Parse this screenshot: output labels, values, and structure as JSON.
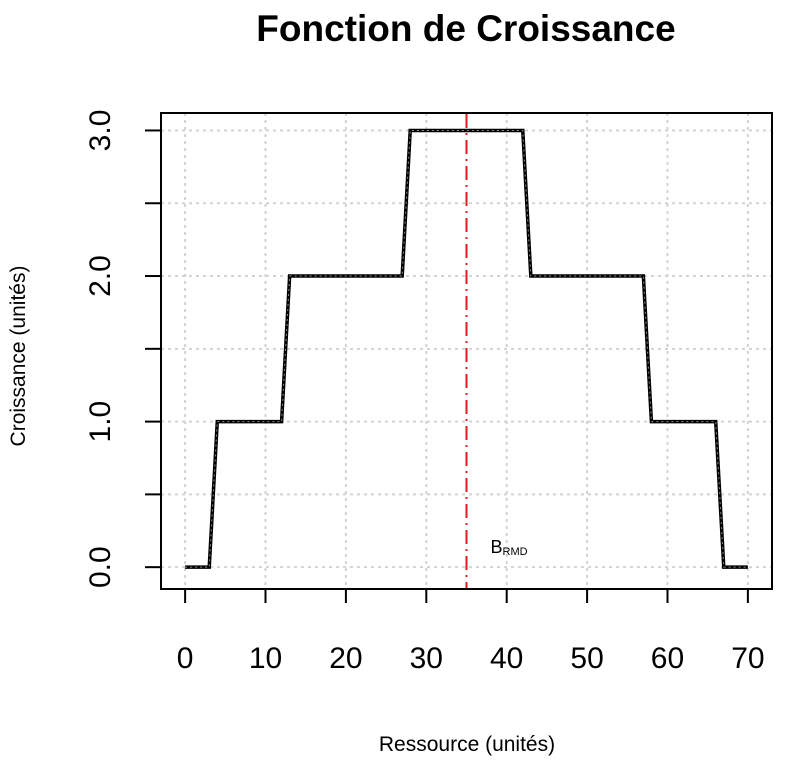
{
  "chart_data": {
    "type": "line",
    "title": "Fonction de Croissance",
    "xlabel": "Ressource (unités)",
    "ylabel": "Croissance (unités)",
    "xlim": [
      -3,
      73
    ],
    "ylim": [
      -0.15,
      3.12
    ],
    "x_ticks": [
      0,
      10,
      20,
      30,
      40,
      50,
      60,
      70
    ],
    "x_tick_labels": [
      "0",
      "10",
      "20",
      "30",
      "40",
      "50",
      "60",
      "70"
    ],
    "y_ticks": [
      0,
      1,
      2,
      3
    ],
    "y_tick_labels": [
      "0.0",
      "1.0",
      "2.0",
      "3.0"
    ],
    "y_minor_ticks": [
      0.5,
      1.5,
      2.5
    ],
    "grid": true,
    "series": [
      {
        "color": "#000000",
        "style": "solid",
        "x": [
          0,
          3,
          4,
          12,
          13,
          27,
          28,
          42,
          43,
          57,
          58,
          66,
          67,
          70
        ],
        "y": [
          0,
          0,
          1,
          1,
          2,
          2,
          3,
          3,
          2,
          2,
          1,
          1,
          0,
          0
        ]
      }
    ],
    "reference_line": {
      "x": 35,
      "color": "#e31a1c",
      "style": "dashed",
      "label_main": "B",
      "label_sub": "RMD"
    }
  }
}
